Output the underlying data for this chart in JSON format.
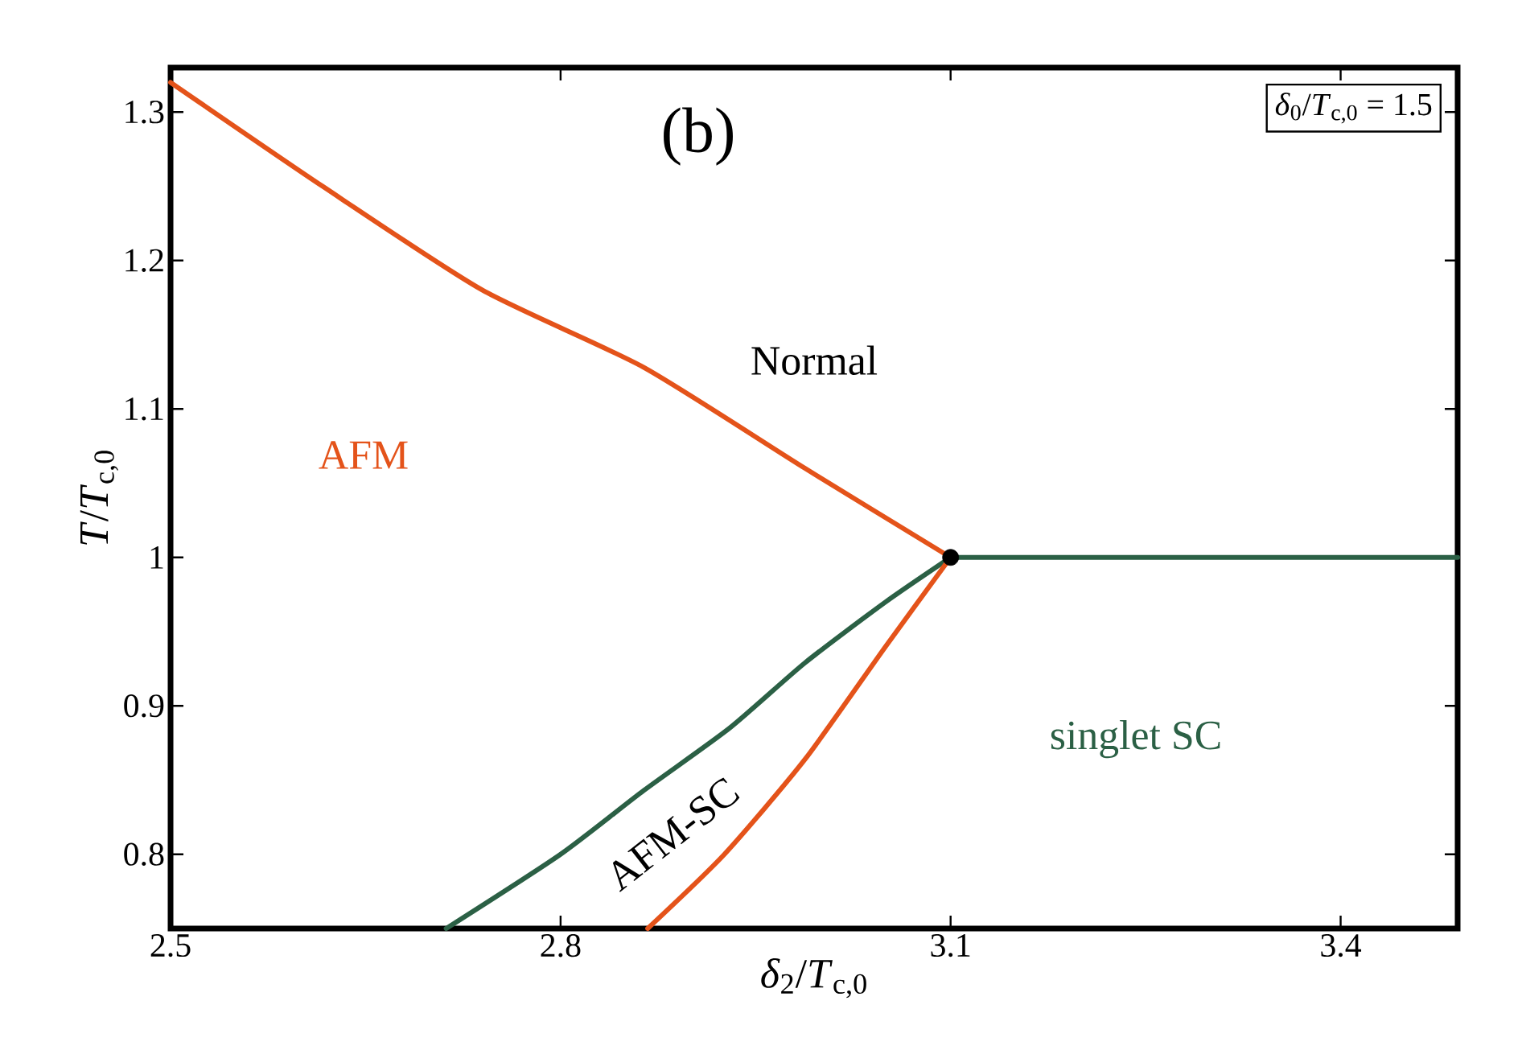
{
  "chart_data": {
    "type": "line",
    "xlabel": "*δ*$_{2}$/*T*$_{c,0}$",
    "ylabel": "*T*/*T*$_{c,0}$",
    "xlim": [
      2.5,
      3.49
    ],
    "ylim": [
      0.75,
      1.33
    ],
    "xticks": [
      2.5,
      2.8,
      3.1,
      3.4
    ],
    "yticks": [
      0.8,
      0.9,
      1,
      1.1,
      1.2,
      1.3
    ],
    "series": [
      {
        "color": "#e4531a",
        "x": [
          2.5,
          2.617,
          2.74,
          2.864,
          2.988,
          3.1
        ],
        "values": [
          1.32,
          1.25,
          1.18,
          1.128,
          1.06,
          1.0
        ]
      },
      {
        "color": "#2b6045",
        "x": [
          2.712,
          2.8,
          2.864,
          2.93,
          2.988,
          3.05,
          3.1
        ],
        "values": [
          0.75,
          0.8,
          0.843,
          0.885,
          0.929,
          0.97,
          1.0
        ]
      },
      {
        "color": "#e4531a",
        "x": [
          2.867,
          2.926,
          2.988,
          3.05,
          3.1
        ],
        "values": [
          0.75,
          0.8,
          0.864,
          0.94,
          1.0
        ]
      },
      {
        "color": "#2b6045",
        "x": [
          3.1,
          3.49
        ],
        "values": [
          1.0,
          1.0
        ]
      },
      {
        "type": "scatter",
        "color": "#000000",
        "x": [
          3.1
        ],
        "values": [
          1.0
        ]
      }
    ],
    "annotations": [
      "(b)",
      "*δ*$_{0}$/*T*$_{c,0}$ = 1.5",
      "Normal",
      "AFM",
      "AFM-SC",
      "singlet SC"
    ]
  }
}
